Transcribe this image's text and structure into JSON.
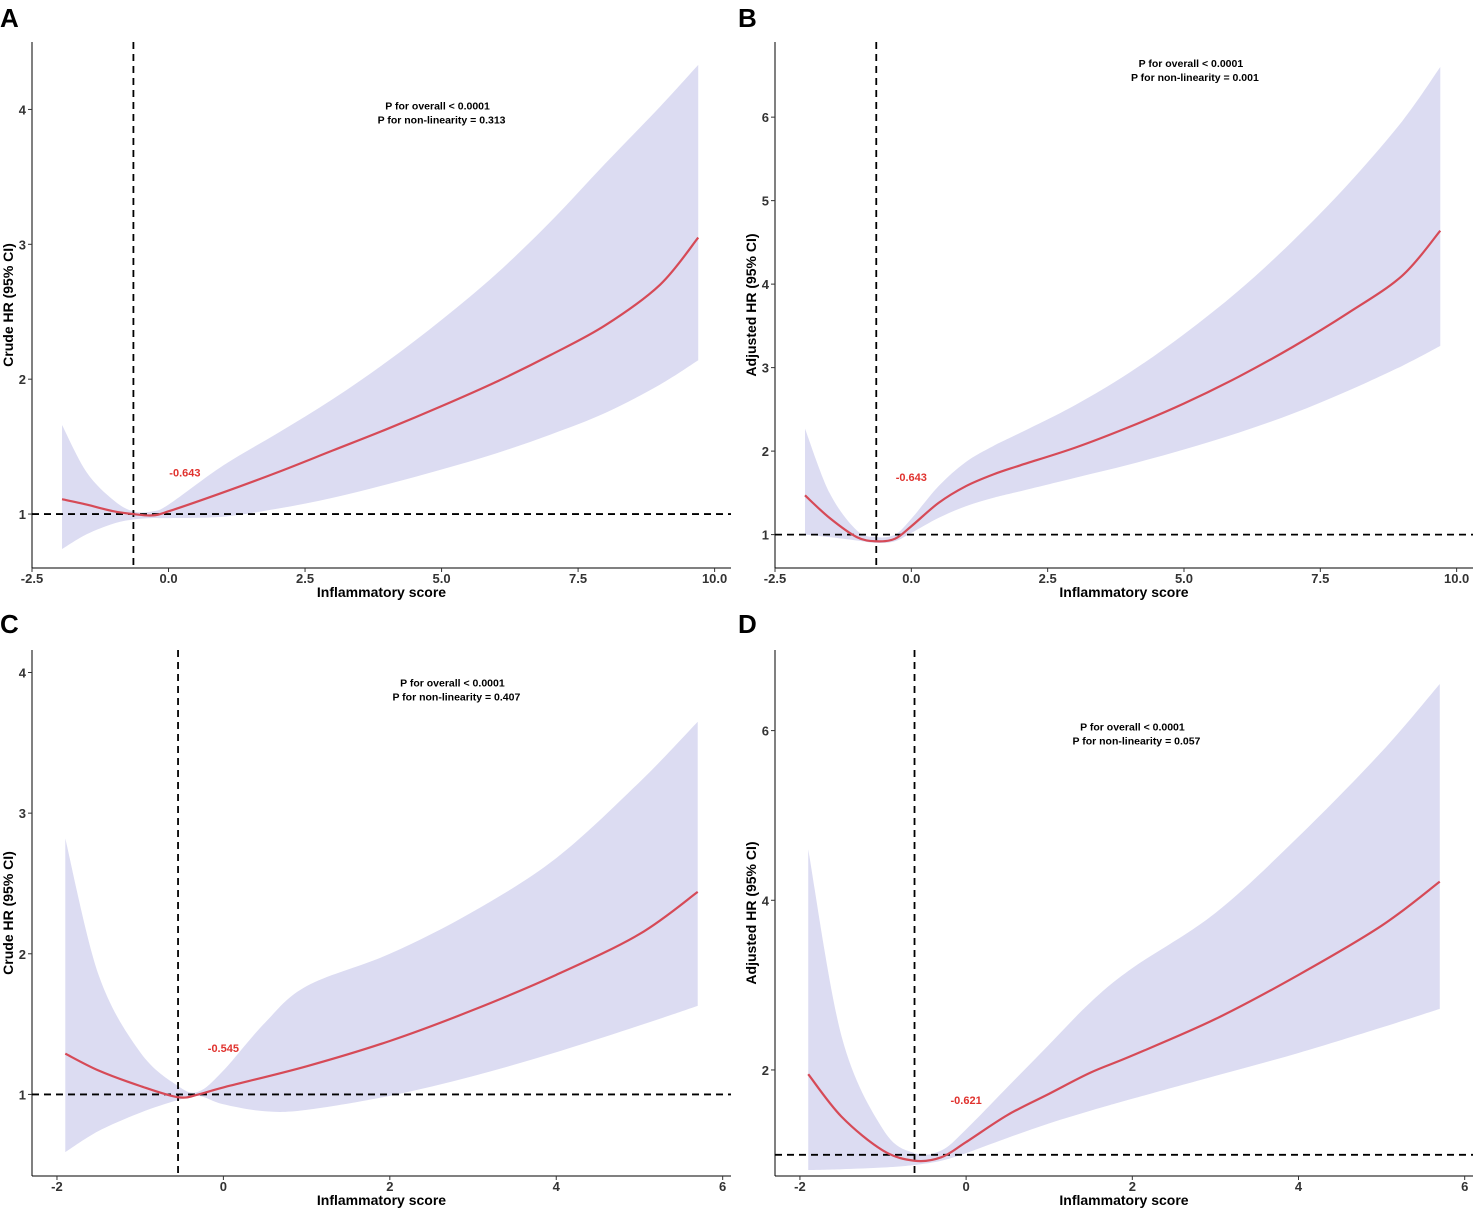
{
  "colors": {
    "curve": "#d64a57",
    "band": "#dcdcf2",
    "reference": "#000000",
    "annotation": "#e0322e"
  },
  "chart_data": [
    {
      "panel": "A",
      "type": "line",
      "xlabel": "Inflammatory score",
      "ylabel": "Crude HR (95% CI)",
      "xlim": [
        -2.5,
        10.3
      ],
      "ylim": [
        0.6,
        4.5
      ],
      "xticks": [
        -2.5,
        0.0,
        2.5,
        5.0,
        7.5,
        10.0
      ],
      "xtick_labels": [
        "-2.5",
        "0.0",
        "2.5",
        "5.0",
        "7.5",
        "10.0"
      ],
      "yticks": [
        1,
        2,
        3,
        4
      ],
      "ytick_labels": [
        "1",
        "2",
        "3",
        "4"
      ],
      "ref_x": -0.643,
      "ref_y": 1,
      "annotation": "-0.643",
      "annotation_at": [
        0.3,
        1.28
      ],
      "p_overall": "P for overall < 0.0001",
      "p_nonlin": "P for non-linearity = 0.313",
      "p_at": [
        5.0,
        4.0
      ],
      "series": [
        {
          "name": "HR",
          "x": [
            -1.95,
            -1.5,
            -1.0,
            -0.643,
            -0.3,
            0.0,
            1.0,
            2.0,
            3.0,
            4.0,
            5.0,
            6.0,
            7.0,
            8.0,
            9.0,
            9.7
          ],
          "y": [
            1.11,
            1.07,
            1.02,
            1.0,
            0.99,
            1.02,
            1.16,
            1.31,
            1.47,
            1.63,
            1.8,
            1.98,
            2.18,
            2.4,
            2.7,
            3.05
          ]
        },
        {
          "name": "Lower 95% CI",
          "x": [
            -1.95,
            -1.5,
            -1.0,
            -0.643,
            -0.3,
            0.0,
            1.0,
            2.0,
            3.0,
            4.0,
            5.0,
            6.0,
            7.0,
            8.0,
            9.0,
            9.7
          ],
          "y": [
            0.74,
            0.85,
            0.93,
            0.96,
            0.97,
            0.97,
            0.98,
            1.04,
            1.12,
            1.22,
            1.33,
            1.45,
            1.59,
            1.75,
            1.96,
            2.14
          ]
        },
        {
          "name": "Upper 95% CI",
          "x": [
            -1.95,
            -1.5,
            -1.0,
            -0.643,
            -0.3,
            0.0,
            1.0,
            2.0,
            3.0,
            4.0,
            5.0,
            6.0,
            7.0,
            8.0,
            9.0,
            9.7
          ],
          "y": [
            1.66,
            1.31,
            1.1,
            1.02,
            1.02,
            1.07,
            1.36,
            1.6,
            1.85,
            2.13,
            2.44,
            2.78,
            3.17,
            3.6,
            4.02,
            4.33
          ]
        }
      ]
    },
    {
      "panel": "B",
      "type": "line",
      "xlabel": "Inflammatory score",
      "ylabel": "Adjusted HR (95% CI)",
      "xlim": [
        -2.5,
        10.3
      ],
      "ylim": [
        0.6,
        6.9
      ],
      "xticks": [
        -2.5,
        0.0,
        2.5,
        5.0,
        7.5,
        10.0
      ],
      "xtick_labels": [
        "-2.5",
        "0.0",
        "2.5",
        "5.0",
        "7.5",
        "10.0"
      ],
      "yticks": [
        1,
        2,
        3,
        4,
        5,
        6
      ],
      "ytick_labels": [
        "1",
        "2",
        "3",
        "4",
        "5",
        "6"
      ],
      "ref_x": -0.643,
      "ref_y": 1,
      "annotation": "-0.643",
      "annotation_at": [
        0.0,
        1.64
      ],
      "p_overall": "P for overall < 0.0001",
      "p_nonlin": "P for non-linearity = 0.001",
      "p_at": [
        5.2,
        6.6
      ],
      "series": [
        {
          "name": "HR",
          "x": [
            -1.95,
            -1.5,
            -1.0,
            -0.643,
            -0.3,
            0.0,
            0.5,
            1.0,
            1.5,
            2.0,
            3.0,
            4.0,
            5.0,
            6.0,
            7.0,
            8.0,
            9.0,
            9.7
          ],
          "y": [
            1.47,
            1.2,
            0.97,
            0.92,
            0.95,
            1.1,
            1.38,
            1.58,
            1.72,
            1.83,
            2.04,
            2.29,
            2.57,
            2.89,
            3.25,
            3.65,
            4.1,
            4.64
          ]
        },
        {
          "name": "Lower 95% CI",
          "x": [
            -1.95,
            -1.5,
            -1.0,
            -0.643,
            -0.3,
            0.0,
            0.5,
            1.0,
            1.5,
            2.0,
            3.0,
            4.0,
            5.0,
            6.0,
            7.0,
            8.0,
            9.0,
            9.7
          ],
          "y": [
            1.0,
            0.97,
            0.93,
            0.9,
            0.92,
            1.02,
            1.2,
            1.34,
            1.44,
            1.52,
            1.68,
            1.84,
            2.02,
            2.22,
            2.45,
            2.72,
            3.02,
            3.26
          ]
        },
        {
          "name": "Upper 95% CI",
          "x": [
            -1.95,
            -1.5,
            -1.0,
            -0.643,
            -0.3,
            0.0,
            0.5,
            1.0,
            1.5,
            2.0,
            3.0,
            4.0,
            5.0,
            6.0,
            7.0,
            8.0,
            9.0,
            9.7
          ],
          "y": [
            2.27,
            1.5,
            1.05,
            0.97,
            1.0,
            1.19,
            1.58,
            1.87,
            2.06,
            2.22,
            2.55,
            2.94,
            3.4,
            3.92,
            4.52,
            5.19,
            5.95,
            6.6
          ]
        }
      ]
    },
    {
      "panel": "C",
      "type": "line",
      "xlabel": "Inflammatory score",
      "ylabel": "Crude HR (95% CI)",
      "xlim": [
        -2.3,
        6.1
      ],
      "ylim": [
        0.42,
        4.16
      ],
      "xticks": [
        -2,
        0,
        2,
        4,
        6
      ],
      "xtick_labels": [
        "-2",
        "0",
        "2",
        "4",
        "6"
      ],
      "yticks": [
        1,
        2,
        3,
        4
      ],
      "ytick_labels": [
        "1",
        "2",
        "3",
        "4"
      ],
      "ref_x": -0.545,
      "ref_y": 1,
      "annotation": "-0.545",
      "annotation_at": [
        0.0,
        1.3
      ],
      "p_overall": "P for overall < 0.0001",
      "p_nonlin": "P for non-linearity = 0.407",
      "p_at": [
        2.8,
        3.9
      ],
      "series": [
        {
          "name": "HR",
          "x": [
            -1.9,
            -1.5,
            -1.0,
            -0.545,
            -0.3,
            0.0,
            1.0,
            2.0,
            3.0,
            4.0,
            5.0,
            5.7
          ],
          "y": [
            1.29,
            1.17,
            1.06,
            0.98,
            1.0,
            1.05,
            1.2,
            1.38,
            1.6,
            1.85,
            2.14,
            2.44
          ]
        },
        {
          "name": "Lower 95% CI",
          "x": [
            -1.9,
            -1.5,
            -1.0,
            -0.545,
            -0.3,
            0.0,
            0.5,
            1.0,
            2.0,
            3.0,
            4.0,
            5.0,
            5.7
          ],
          "y": [
            0.59,
            0.74,
            0.87,
            0.96,
            0.99,
            0.93,
            0.88,
            0.89,
            0.99,
            1.13,
            1.3,
            1.49,
            1.63
          ]
        },
        {
          "name": "Upper 95% CI",
          "x": [
            -1.9,
            -1.5,
            -1.0,
            -0.545,
            -0.3,
            0.0,
            0.5,
            1.0,
            2.0,
            3.0,
            4.0,
            5.0,
            5.7
          ],
          "y": [
            2.82,
            1.85,
            1.3,
            1.06,
            1.02,
            1.17,
            1.51,
            1.77,
            2.0,
            2.3,
            2.68,
            3.22,
            3.65
          ]
        }
      ]
    },
    {
      "panel": "D",
      "type": "line",
      "xlabel": "Inflammatory score",
      "ylabel": "Adjusted HR (95% CI)",
      "xlim": [
        -2.3,
        6.1
      ],
      "ylim": [
        0.75,
        6.95
      ],
      "xticks": [
        -2,
        0,
        2,
        4,
        6
      ],
      "xtick_labels": [
        "-2",
        "0",
        "2",
        "4",
        "6"
      ],
      "yticks": [
        2,
        4,
        6
      ],
      "ytick_labels": [
        "2",
        "4",
        "6"
      ],
      "ref_x": -0.621,
      "ref_y": 1,
      "annotation": "-0.621",
      "annotation_at": [
        0.0,
        1.6
      ],
      "p_overall": "P for overall < 0.0001",
      "p_nonlin": "P for non-linearity = 0.057",
      "p_at": [
        2.05,
        6.0
      ],
      "series": [
        {
          "name": "HR",
          "x": [
            -1.9,
            -1.5,
            -1.0,
            -0.621,
            -0.3,
            0.0,
            0.5,
            1.0,
            1.5,
            2.0,
            3.0,
            4.0,
            5.0,
            5.7
          ],
          "y": [
            1.95,
            1.45,
            1.05,
            0.93,
            0.97,
            1.15,
            1.47,
            1.72,
            1.97,
            2.17,
            2.6,
            3.12,
            3.7,
            4.22
          ]
        },
        {
          "name": "Lower 95% CI",
          "x": [
            -1.9,
            -1.5,
            -1.0,
            -0.621,
            -0.3,
            0.0,
            0.5,
            1.0,
            1.5,
            2.0,
            3.0,
            4.0,
            5.0,
            5.7
          ],
          "y": [
            0.82,
            0.83,
            0.85,
            0.88,
            0.93,
            1.02,
            1.2,
            1.37,
            1.52,
            1.66,
            1.93,
            2.2,
            2.5,
            2.72
          ]
        },
        {
          "name": "Upper 95% CI",
          "x": [
            -1.9,
            -1.5,
            -1.0,
            -0.621,
            -0.3,
            0.0,
            0.5,
            1.0,
            1.5,
            2.0,
            3.0,
            4.0,
            5.0,
            5.7
          ],
          "y": [
            4.6,
            2.4,
            1.3,
            1.02,
            1.05,
            1.3,
            1.8,
            2.3,
            2.8,
            3.2,
            3.85,
            4.75,
            5.75,
            6.55
          ]
        }
      ]
    }
  ]
}
